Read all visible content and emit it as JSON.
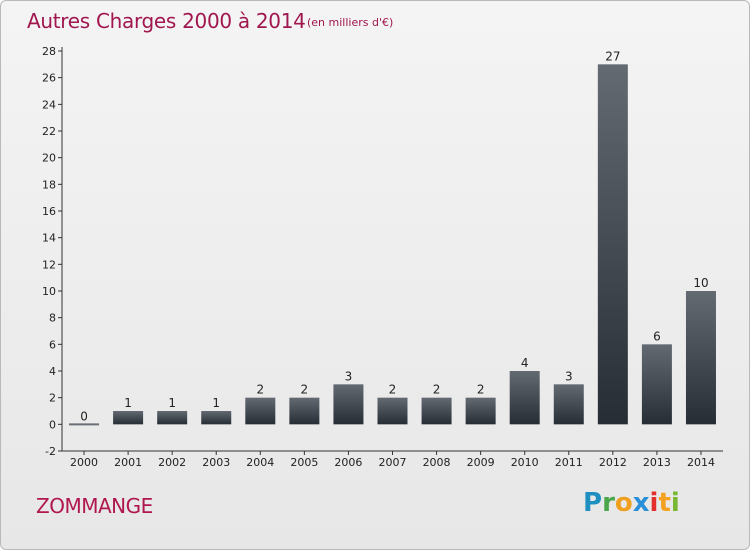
{
  "header": {
    "title": "Autres Charges 2000 à 2014",
    "subtitle": "(en milliers d'€)"
  },
  "footer": {
    "commune": "ZOMMANGE",
    "logo_text": "Proxiti"
  },
  "colors": {
    "title": "#a0174f",
    "bar_dark": "#262d35",
    "bar_light": "#646a72",
    "background": "#ececec"
  },
  "chart_data": {
    "type": "bar",
    "title": "Autres Charges 2000 à 2014",
    "subtitle": "(en milliers d'€)",
    "xlabel": "",
    "ylabel": "",
    "categories": [
      "2000",
      "2001",
      "2002",
      "2003",
      "2004",
      "2005",
      "2006",
      "2007",
      "2008",
      "2009",
      "2010",
      "2011",
      "2012",
      "2013",
      "2014"
    ],
    "values": [
      0,
      1,
      1,
      1,
      2,
      2,
      3,
      2,
      2,
      2,
      4,
      3,
      27,
      6,
      10
    ],
    "ylim": [
      -2,
      28
    ],
    "yticks": [
      -2,
      0,
      2,
      4,
      6,
      8,
      10,
      12,
      14,
      16,
      18,
      20,
      22,
      24,
      26,
      28
    ],
    "grid": false,
    "legend": "none"
  }
}
